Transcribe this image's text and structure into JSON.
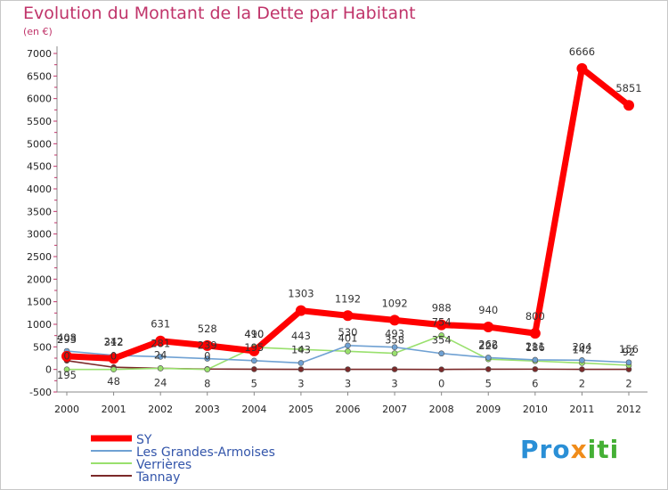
{
  "chart_data": {
    "type": "line",
    "title": "Evolution du Montant de la Dette par Habitant",
    "subtitle": "(en €)",
    "xlabel": "",
    "ylabel": "",
    "x": [
      "2000",
      "2001",
      "2002",
      "2003",
      "2004",
      "2005",
      "2006",
      "2007",
      "2008",
      "2009",
      "2010",
      "2011",
      "2012"
    ],
    "ylim": [
      -500,
      7000
    ],
    "yticks": [
      -500,
      0,
      500,
      1000,
      1500,
      2000,
      2500,
      3000,
      3500,
      4000,
      4500,
      5000,
      5500,
      6000,
      6500,
      7000
    ],
    "grid": false,
    "legend": "bottom-left",
    "series": [
      {
        "name": "SY",
        "color": "#ff0000",
        "values": [
          293,
          242,
          631,
          528,
          410,
          1303,
          1192,
          1092,
          988,
          940,
          800,
          6666,
          5851
        ]
      },
      {
        "name": "Les Grandes-Armoises",
        "color": "#6fa1d3",
        "values": [
          408,
          312,
          281,
          239,
          195,
          143,
          530,
          493,
          354,
          262,
          211,
          204,
          156
        ]
      },
      {
        "name": "Verrières",
        "color": "#99e06d",
        "values": [
          0,
          0,
          24,
          0,
          490,
          443,
          401,
          358,
          754,
          226,
          186,
          142,
          92
        ]
      },
      {
        "name": "Tannay",
        "color": "#7b2929",
        "values": [
          195,
          48,
          24,
          8,
          5,
          3,
          3,
          3,
          0,
          5,
          6,
          2,
          2
        ]
      }
    ]
  },
  "logo": {
    "part1": "Pro",
    "part2": "x",
    "part3": "iti"
  }
}
